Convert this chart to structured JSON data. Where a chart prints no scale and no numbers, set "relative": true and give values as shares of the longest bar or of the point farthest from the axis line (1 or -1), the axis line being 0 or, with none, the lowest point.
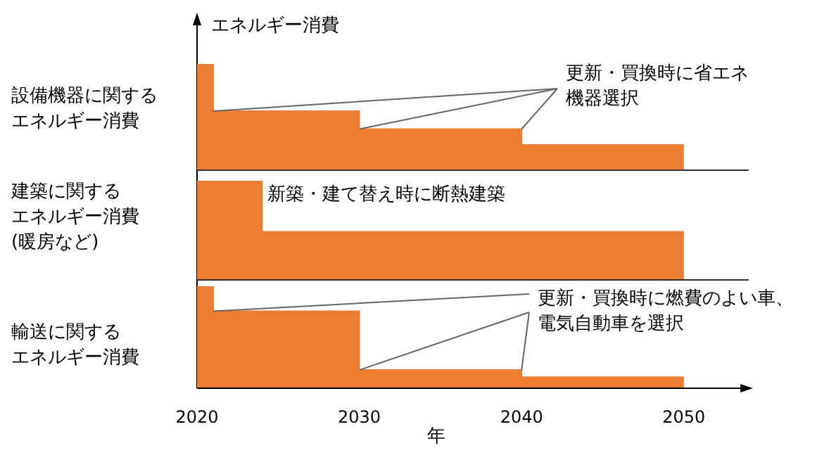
{
  "chart_data": [
    {
      "type": "area",
      "title": "エネルギー消費",
      "ylabel": "設備機器に関するエネルギー消費",
      "relative": true,
      "x": [
        2020,
        2021,
        2021,
        2030,
        2030,
        2040,
        2040,
        2050
      ],
      "xlim": [
        2020,
        2054
      ],
      "tick_labels": false,
      "series": [
        {
          "color": "#ed7d31",
          "values": [
            1,
            1,
            0.56,
            0.56,
            0.39,
            0.39,
            0.24,
            0.24
          ]
        }
      ],
      "annotations": [
        "更新・買換時に省エネ機器選択"
      ]
    },
    {
      "type": "area",
      "ylabel": "建築に関するエネルギー消費(暖房など)",
      "relative": true,
      "x": [
        2020,
        2024,
        2024,
        2050
      ],
      "xlim": [
        2020,
        2054
      ],
      "tick_labels": false,
      "series": [
        {
          "color": "#ed7d31",
          "values": [
            1,
            1,
            0.49,
            0.49
          ]
        }
      ],
      "annotations": [
        "新築・建て替え時に断熱建築"
      ]
    },
    {
      "type": "area",
      "ylabel": "輸送に関するエネルギー消費",
      "xlabel": "年",
      "relative": true,
      "x": [
        2020,
        2021,
        2021,
        2030,
        2030,
        2040,
        2040,
        2050
      ],
      "xlim": [
        2020,
        2054
      ],
      "xticks": [
        2020,
        2030,
        2040,
        2050
      ],
      "tick_labels": "x",
      "series": [
        {
          "color": "#ed7d31",
          "values": [
            1,
            1,
            0.76,
            0.76,
            0.18,
            0.18,
            0.11,
            0.11
          ]
        }
      ],
      "annotations": [
        "更新・買換時に燃費のよい車、電気自動車を選択"
      ]
    }
  ]
}
